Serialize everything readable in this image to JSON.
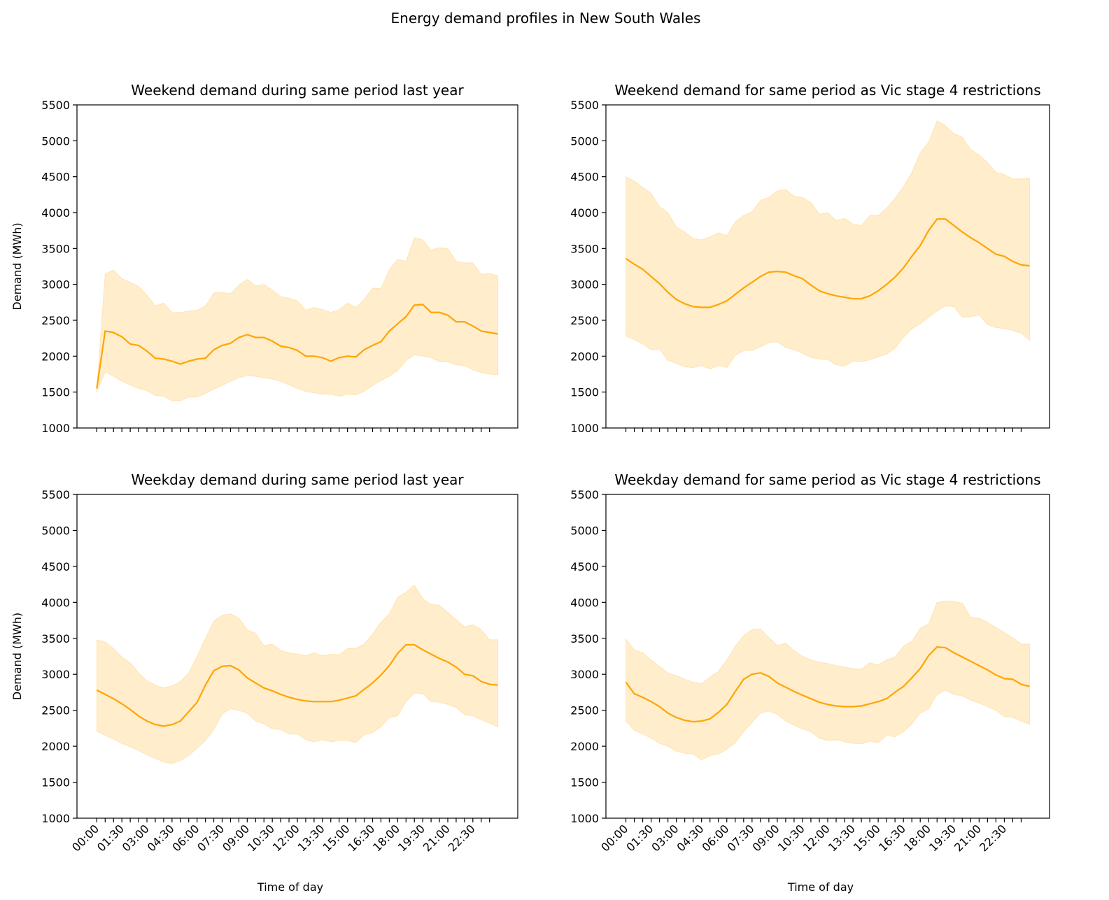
{
  "figure": {
    "title": "Energy demand profiles in New South Wales",
    "colors": {
      "line": "#FFA500",
      "band": "#FFA500"
    }
  },
  "chart_data": [
    {
      "type": "line",
      "title": "Weekend demand during same period last year",
      "xlabel": "",
      "ylabel": "Demand (MWh)",
      "ylim": [
        1000,
        5500
      ],
      "yticks": [
        1000,
        1500,
        2000,
        2500,
        3000,
        3500,
        4000,
        4500,
        5000,
        5500
      ],
      "xtick_labels": [],
      "mean": [
        1550,
        2350,
        2330,
        2270,
        2170,
        2150,
        2070,
        1970,
        1960,
        1930,
        1890,
        1930,
        1960,
        1970,
        2090,
        2150,
        2180,
        2260,
        2300,
        2260,
        2260,
        2210,
        2140,
        2120,
        2080,
        2000,
        2000,
        1980,
        1930,
        1980,
        2000,
        1990,
        2090,
        2150,
        2200,
        2350,
        2450,
        2550,
        2710,
        2720,
        2610,
        2610,
        2570,
        2480,
        2480,
        2420,
        2350,
        2330,
        2310
      ],
      "upper": [
        1550,
        3150,
        3200,
        3080,
        3030,
        2970,
        2850,
        2700,
        2740,
        2610,
        2610,
        2630,
        2640,
        2700,
        2880,
        2890,
        2870,
        2990,
        3070,
        2980,
        3000,
        2920,
        2830,
        2810,
        2770,
        2640,
        2680,
        2650,
        2610,
        2650,
        2740,
        2680,
        2790,
        2950,
        2940,
        3200,
        3350,
        3320,
        3650,
        3620,
        3480,
        3510,
        3500,
        3320,
        3300,
        3300,
        3140,
        3150,
        3120
      ],
      "lower": [
        1500,
        1780,
        1720,
        1650,
        1600,
        1550,
        1520,
        1450,
        1440,
        1380,
        1380,
        1430,
        1430,
        1480,
        1540,
        1590,
        1650,
        1700,
        1730,
        1720,
        1700,
        1680,
        1650,
        1600,
        1550,
        1510,
        1490,
        1470,
        1470,
        1440,
        1470,
        1460,
        1510,
        1590,
        1660,
        1720,
        1800,
        1940,
        2020,
        2000,
        1980,
        1920,
        1920,
        1880,
        1870,
        1810,
        1770,
        1750,
        1740
      ]
    },
    {
      "type": "line",
      "title": "Weekend demand for same period as Vic stage 4 restrictions",
      "xlabel": "",
      "ylabel": "",
      "ylim": [
        1000,
        5500
      ],
      "yticks": [
        1000,
        1500,
        2000,
        2500,
        3000,
        3500,
        4000,
        4500,
        5000,
        5500
      ],
      "xtick_labels": [],
      "mean": [
        3360,
        3280,
        3210,
        3110,
        3010,
        2890,
        2790,
        2730,
        2690,
        2680,
        2680,
        2720,
        2770,
        2860,
        2950,
        3030,
        3110,
        3170,
        3180,
        3170,
        3120,
        3080,
        2990,
        2910,
        2870,
        2840,
        2820,
        2800,
        2800,
        2840,
        2910,
        3000,
        3100,
        3230,
        3390,
        3540,
        3750,
        3910,
        3910,
        3820,
        3730,
        3650,
        3580,
        3500,
        3420,
        3390,
        3320,
        3270,
        3260
      ],
      "upper": [
        4500,
        4440,
        4350,
        4270,
        4080,
        4000,
        3800,
        3730,
        3640,
        3620,
        3660,
        3720,
        3680,
        3870,
        3960,
        4010,
        4170,
        4210,
        4300,
        4320,
        4230,
        4210,
        4140,
        3980,
        4000,
        3890,
        3920,
        3840,
        3820,
        3960,
        3960,
        4060,
        4200,
        4360,
        4560,
        4830,
        4980,
        5280,
        5210,
        5100,
        5050,
        4880,
        4800,
        4700,
        4560,
        4530,
        4470,
        4470,
        4480
      ],
      "lower": [
        2280,
        2230,
        2170,
        2090,
        2100,
        1940,
        1900,
        1850,
        1840,
        1870,
        1820,
        1870,
        1840,
        2010,
        2080,
        2080,
        2130,
        2190,
        2200,
        2120,
        2090,
        2040,
        1980,
        1960,
        1950,
        1880,
        1860,
        1930,
        1920,
        1950,
        1990,
        2030,
        2110,
        2260,
        2380,
        2450,
        2540,
        2630,
        2700,
        2690,
        2540,
        2550,
        2570,
        2440,
        2400,
        2380,
        2360,
        2320,
        2220
      ]
    },
    {
      "type": "line",
      "title": "Weekday demand during same period last year",
      "xlabel": "Time of day",
      "ylabel": "Demand (MWh)",
      "ylim": [
        1000,
        5500
      ],
      "yticks": [
        1000,
        1500,
        2000,
        2500,
        3000,
        3500,
        4000,
        4500,
        5000,
        5500
      ],
      "xtick_labels": [
        "00:00",
        "01:30",
        "03:00",
        "04:30",
        "06:00",
        "07:30",
        "09:00",
        "10:30",
        "12:00",
        "13:30",
        "15:00",
        "16:30",
        "18:00",
        "19:30",
        "21:00",
        "22:30"
      ],
      "mean": [
        2780,
        2720,
        2660,
        2590,
        2510,
        2420,
        2350,
        2300,
        2280,
        2300,
        2350,
        2480,
        2610,
        2850,
        3050,
        3110,
        3120,
        3060,
        2950,
        2880,
        2810,
        2770,
        2720,
        2680,
        2650,
        2630,
        2620,
        2620,
        2620,
        2640,
        2670,
        2700,
        2790,
        2880,
        2990,
        3120,
        3290,
        3410,
        3410,
        3340,
        3280,
        3220,
        3170,
        3100,
        3000,
        2980,
        2900,
        2860,
        2850
      ],
      "upper": [
        3480,
        3450,
        3360,
        3240,
        3160,
        3020,
        2910,
        2850,
        2810,
        2840,
        2900,
        3020,
        3250,
        3500,
        3740,
        3820,
        3840,
        3780,
        3620,
        3570,
        3400,
        3420,
        3330,
        3300,
        3280,
        3260,
        3300,
        3260,
        3280,
        3270,
        3360,
        3360,
        3420,
        3560,
        3720,
        3840,
        4070,
        4140,
        4240,
        4050,
        3970,
        3960,
        3860,
        3760,
        3660,
        3690,
        3620,
        3480,
        3480
      ],
      "lower": [
        2210,
        2150,
        2100,
        2040,
        1990,
        1940,
        1880,
        1830,
        1780,
        1760,
        1800,
        1870,
        1970,
        2080,
        2230,
        2450,
        2520,
        2500,
        2460,
        2350,
        2310,
        2240,
        2230,
        2170,
        2170,
        2090,
        2060,
        2090,
        2060,
        2080,
        2080,
        2050,
        2160,
        2190,
        2270,
        2400,
        2420,
        2620,
        2740,
        2730,
        2620,
        2610,
        2580,
        2540,
        2440,
        2420,
        2370,
        2320,
        2270
      ]
    },
    {
      "type": "line",
      "title": "Weekday demand for same period as Vic stage 4 restrictions",
      "xlabel": "Time of day",
      "ylabel": "",
      "ylim": [
        1000,
        5500
      ],
      "yticks": [
        1000,
        1500,
        2000,
        2500,
        3000,
        3500,
        4000,
        4500,
        5000,
        5500
      ],
      "xtick_labels": [
        "00:00",
        "01:30",
        "03:00",
        "04:30",
        "06:00",
        "07:30",
        "09:00",
        "10:30",
        "12:00",
        "13:30",
        "15:00",
        "16:30",
        "18:00",
        "19:30",
        "21:00",
        "22:30"
      ],
      "mean": [
        2890,
        2730,
        2680,
        2620,
        2550,
        2460,
        2400,
        2360,
        2340,
        2350,
        2380,
        2470,
        2580,
        2760,
        2930,
        3000,
        3020,
        2970,
        2880,
        2820,
        2760,
        2710,
        2660,
        2610,
        2580,
        2560,
        2550,
        2550,
        2560,
        2590,
        2620,
        2660,
        2750,
        2830,
        2950,
        3080,
        3260,
        3380,
        3370,
        3300,
        3240,
        3180,
        3120,
        3060,
        2990,
        2940,
        2930,
        2860,
        2830
      ],
      "upper": [
        3490,
        3340,
        3300,
        3200,
        3110,
        3020,
        2980,
        2930,
        2890,
        2870,
        2960,
        3040,
        3200,
        3390,
        3540,
        3620,
        3630,
        3510,
        3400,
        3430,
        3330,
        3250,
        3200,
        3170,
        3150,
        3120,
        3100,
        3080,
        3070,
        3160,
        3130,
        3200,
        3240,
        3390,
        3460,
        3640,
        3700,
        4000,
        4020,
        4010,
        3990,
        3790,
        3780,
        3720,
        3650,
        3580,
        3510,
        3420,
        3420
      ],
      "lower": [
        2350,
        2220,
        2170,
        2110,
        2040,
        2000,
        1930,
        1900,
        1890,
        1810,
        1870,
        1890,
        1960,
        2050,
        2200,
        2330,
        2460,
        2490,
        2440,
        2350,
        2290,
        2240,
        2200,
        2110,
        2080,
        2090,
        2060,
        2040,
        2030,
        2070,
        2050,
        2150,
        2130,
        2200,
        2310,
        2460,
        2520,
        2720,
        2780,
        2720,
        2700,
        2640,
        2600,
        2550,
        2500,
        2410,
        2400,
        2350,
        2300
      ]
    }
  ]
}
